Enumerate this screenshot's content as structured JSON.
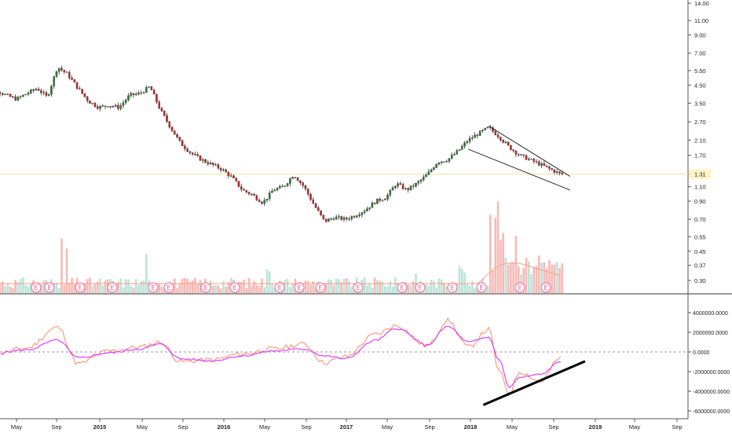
{
  "chart_data": [
    {
      "type": "candlestick",
      "title": "",
      "y_scale": "log",
      "ylim": [
        0.25,
        14.5
      ],
      "y_ticks": [
        "14.00",
        "11.00",
        "9.00",
        "7.00",
        "5.50",
        "4.50",
        "3.50",
        "2.70",
        "2.10",
        "1.70",
        "1.31",
        "1.10",
        "0.90",
        "0.70",
        "0.55",
        "0.45",
        "0.37",
        "0.30"
      ],
      "y_tick_values": [
        14.0,
        11.0,
        9.0,
        7.0,
        5.5,
        4.5,
        3.5,
        2.7,
        2.1,
        1.7,
        1.31,
        1.1,
        0.9,
        0.7,
        0.55,
        0.45,
        0.37,
        0.3
      ],
      "last_price_label": "1.31",
      "last_price": 1.31,
      "grid": false,
      "price_path": [
        {
          "x": "2014-03",
          "y": 4.2
        },
        {
          "x": "2014-04",
          "y": 3.9
        },
        {
          "x": "2014-05",
          "y": 3.7
        },
        {
          "x": "2014-06",
          "y": 4.0
        },
        {
          "x": "2014-07",
          "y": 4.3
        },
        {
          "x": "2014-08",
          "y": 3.8
        },
        {
          "x": "2014-09",
          "y": 5.8
        },
        {
          "x": "2014-10",
          "y": 5.2
        },
        {
          "x": "2014-11",
          "y": 4.3
        },
        {
          "x": "2014-12",
          "y": 3.6
        },
        {
          "x": "2015-01",
          "y": 3.3
        },
        {
          "x": "2015-02",
          "y": 3.4
        },
        {
          "x": "2015-03",
          "y": 3.3
        },
        {
          "x": "2015-04",
          "y": 3.9
        },
        {
          "x": "2015-05",
          "y": 4.0
        },
        {
          "x": "2015-06",
          "y": 4.4
        },
        {
          "x": "2015-07",
          "y": 3.2
        },
        {
          "x": "2015-08",
          "y": 2.5
        },
        {
          "x": "2015-09",
          "y": 2.0
        },
        {
          "x": "2015-10",
          "y": 1.75
        },
        {
          "x": "2015-11",
          "y": 1.6
        },
        {
          "x": "2015-12",
          "y": 1.5
        },
        {
          "x": "2016-01",
          "y": 1.4
        },
        {
          "x": "2016-02",
          "y": 1.25
        },
        {
          "x": "2016-03",
          "y": 1.05
        },
        {
          "x": "2016-04",
          "y": 0.98
        },
        {
          "x": "2016-05",
          "y": 0.88
        },
        {
          "x": "2016-06",
          "y": 1.05
        },
        {
          "x": "2016-07",
          "y": 1.1
        },
        {
          "x": "2016-08",
          "y": 1.3
        },
        {
          "x": "2016-09",
          "y": 1.1
        },
        {
          "x": "2016-10",
          "y": 0.85
        },
        {
          "x": "2016-11",
          "y": 0.68
        },
        {
          "x": "2016-12",
          "y": 0.72
        },
        {
          "x": "2017-01",
          "y": 0.7
        },
        {
          "x": "2017-02",
          "y": 0.74
        },
        {
          "x": "2017-03",
          "y": 0.8
        },
        {
          "x": "2017-04",
          "y": 0.9
        },
        {
          "x": "2017-05",
          "y": 0.95
        },
        {
          "x": "2017-06",
          "y": 1.15
        },
        {
          "x": "2017-07",
          "y": 1.05
        },
        {
          "x": "2017-08",
          "y": 1.15
        },
        {
          "x": "2017-09",
          "y": 1.3
        },
        {
          "x": "2017-10",
          "y": 1.55
        },
        {
          "x": "2017-11",
          "y": 1.6
        },
        {
          "x": "2017-12",
          "y": 1.8
        },
        {
          "x": "2018-01",
          "y": 2.1
        },
        {
          "x": "2018-02",
          "y": 2.3
        },
        {
          "x": "2018-03",
          "y": 2.5
        },
        {
          "x": "2018-04",
          "y": 2.2
        },
        {
          "x": "2018-05",
          "y": 1.9
        },
        {
          "x": "2018-06",
          "y": 1.7
        },
        {
          "x": "2018-07",
          "y": 1.6
        },
        {
          "x": "2018-08",
          "y": 1.5
        },
        {
          "x": "2018-09",
          "y": 1.4
        },
        {
          "x": "2018-10",
          "y": 1.31
        }
      ],
      "earnings_markers": [
        "E",
        "E",
        "E",
        "E",
        "E",
        "E",
        "E",
        "E",
        "E",
        "E",
        "E",
        "E",
        "E",
        "E",
        "E",
        "E",
        "E",
        "E",
        "E",
        "E"
      ],
      "trendlines": [
        {
          "from": {
            "x": "2018-03",
            "y": 2.55
          },
          "to": {
            "x": "2018-10",
            "y": 1.27
          }
        },
        {
          "from": {
            "x": "2018-01",
            "y": 1.85
          },
          "to": {
            "x": "2018-10",
            "y": 1.05
          }
        }
      ]
    },
    {
      "type": "line",
      "title": "",
      "ylim": [
        -7000000,
        5000000
      ],
      "y_ticks": [
        "4000000.0000",
        "2000000.0000",
        "0.0000",
        "-2000000.0000",
        "-4000000.0000",
        "-6000000.0000"
      ],
      "y_tick_values": [
        4000000,
        2000000,
        0,
        -2000000,
        -4000000,
        -6000000
      ],
      "zero_line": "dashed",
      "series": [
        {
          "color": "#e040fb",
          "values": [
            {
              "x": "2014-03",
              "y": -100000
            },
            {
              "x": "2014-06",
              "y": 200000
            },
            {
              "x": "2014-09",
              "y": 1200000
            },
            {
              "x": "2014-11",
              "y": -600000
            },
            {
              "x": "2015-02",
              "y": -100000
            },
            {
              "x": "2015-05",
              "y": 300000
            },
            {
              "x": "2015-07",
              "y": 800000
            },
            {
              "x": "2015-09",
              "y": -700000
            },
            {
              "x": "2015-12",
              "y": -900000
            },
            {
              "x": "2016-03",
              "y": -400000
            },
            {
              "x": "2016-06",
              "y": 100000
            },
            {
              "x": "2016-09",
              "y": 300000
            },
            {
              "x": "2016-11",
              "y": -400000
            },
            {
              "x": "2017-01",
              "y": -700000
            },
            {
              "x": "2017-04",
              "y": 1200000
            },
            {
              "x": "2017-06",
              "y": 2400000
            },
            {
              "x": "2017-09",
              "y": 700000
            },
            {
              "x": "2017-11",
              "y": 2600000
            },
            {
              "x": "2018-01",
              "y": 1000000
            },
            {
              "x": "2018-03",
              "y": 1500000
            },
            {
              "x": "2018-04",
              "y": -800000
            },
            {
              "x": "2018-05",
              "y": -3600000
            },
            {
              "x": "2018-06",
              "y": -2600000
            },
            {
              "x": "2018-08",
              "y": -2300000
            },
            {
              "x": "2018-10",
              "y": -1000000
            }
          ]
        },
        {
          "color": "#ff8a65",
          "values": [
            {
              "x": "2014-03",
              "y": -200000
            },
            {
              "x": "2014-06",
              "y": 400000
            },
            {
              "x": "2014-09",
              "y": 2500000
            },
            {
              "x": "2014-11",
              "y": -1200000
            },
            {
              "x": "2015-02",
              "y": 100000
            },
            {
              "x": "2015-05",
              "y": 500000
            },
            {
              "x": "2015-07",
              "y": 1000000
            },
            {
              "x": "2015-09",
              "y": -1000000
            },
            {
              "x": "2015-12",
              "y": -800000
            },
            {
              "x": "2016-03",
              "y": -200000
            },
            {
              "x": "2016-06",
              "y": 300000
            },
            {
              "x": "2016-09",
              "y": 800000
            },
            {
              "x": "2016-11",
              "y": -1100000
            },
            {
              "x": "2017-01",
              "y": -500000
            },
            {
              "x": "2017-04",
              "y": 1800000
            },
            {
              "x": "2017-06",
              "y": 2700000
            },
            {
              "x": "2017-09",
              "y": 600000
            },
            {
              "x": "2017-11",
              "y": 3200000
            },
            {
              "x": "2018-01",
              "y": 500000
            },
            {
              "x": "2018-03",
              "y": 2300000
            },
            {
              "x": "2018-04",
              "y": -2000000
            },
            {
              "x": "2018-05",
              "y": -4200000
            },
            {
              "x": "2018-06",
              "y": -2000000
            },
            {
              "x": "2018-08",
              "y": -3000000
            },
            {
              "x": "2018-10",
              "y": -600000
            }
          ]
        }
      ],
      "trendline": {
        "from": {
          "x": "2018-04",
          "y": -5400000
        },
        "to": {
          "x": "2018-12",
          "y": -950000
        }
      }
    }
  ],
  "x_axis": {
    "labels": [
      "May",
      "Sep",
      "2015",
      "May",
      "Sep",
      "2016",
      "May",
      "Sep",
      "2017",
      "May",
      "Sep",
      "2018",
      "May",
      "Sep",
      "2019",
      "May",
      "Sep"
    ]
  },
  "colors": {
    "up": "#26a69a",
    "down": "#ef5350",
    "candle_body_up": "#2e7d32",
    "candle_body_down": "#c62828",
    "osc_pink": "#e040fb",
    "osc_orange": "#ff8a65",
    "earnings": "#f06292",
    "trend": "#000000"
  }
}
